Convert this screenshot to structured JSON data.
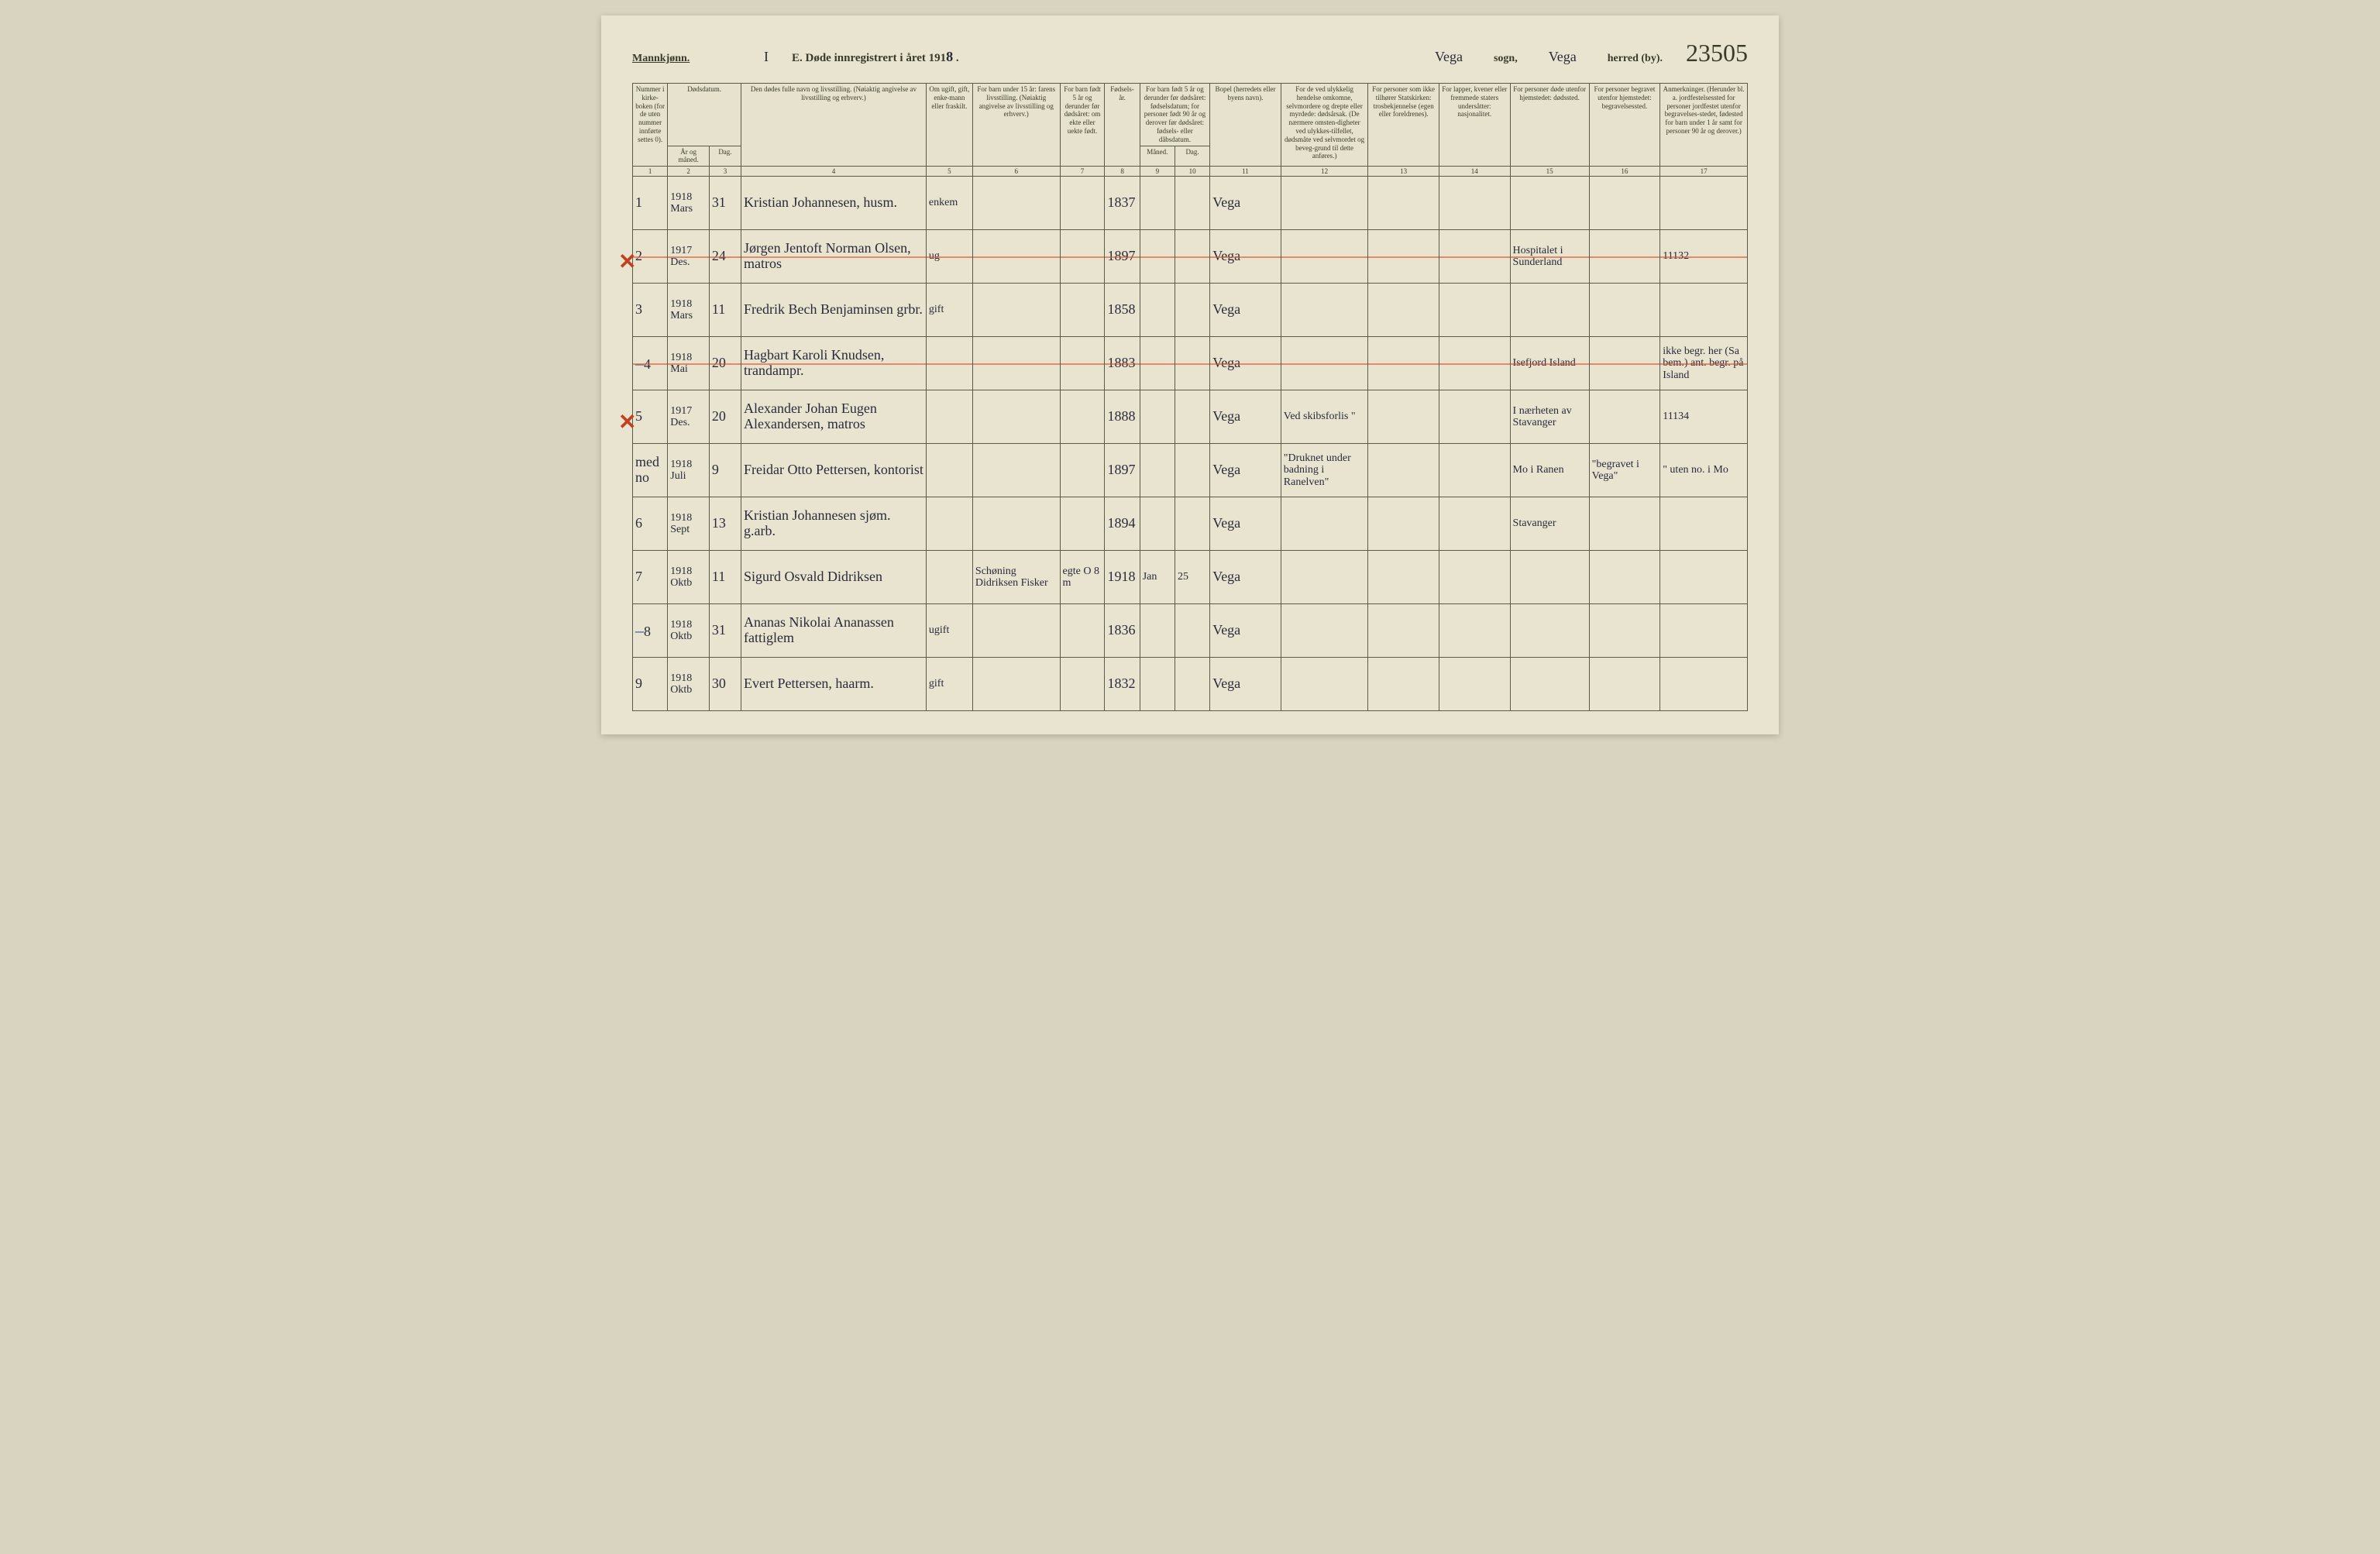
{
  "header": {
    "gender": "Mannkjønn.",
    "ref_mark": "I",
    "title_prefix": "E. Døde innregistrert i året 191",
    "year_suffix": "8",
    "sogn_value": "Vega",
    "sogn_label": "sogn,",
    "herred_value": "Vega",
    "herred_label": "herred (by).",
    "ref_number": "23505"
  },
  "columns": {
    "c1": "Nummer i kirke-boken (for de uten nummer innførte settes 0).",
    "c2_top": "Dødsdatum.",
    "c2": "År og måned.",
    "c3": "Dag.",
    "c4": "Den dødes fulle navn og livsstilling. (Nøiaktig angivelse av livsstilling og erhverv.)",
    "c5": "Om ugift, gift, enke-mann eller fraskilt.",
    "c6": "For barn under 15 år: farens livsstilling. (Nøiaktig angivelse av livsstilling og erhverv.)",
    "c7": "For barn født 5 år og derunder før dødsåret: om ekte eller uekte født.",
    "c8": "Fødsels-år.",
    "c9_10_top": "For barn født 5 år og derunder før dødsåret: fødselsdatum; for personer født 90 år og derover før dødsåret: fødsels- eller dåbsdatum.",
    "c9": "Måned.",
    "c10": "Dag.",
    "c11": "Bopel (herredets eller byens navn).",
    "c12": "For de ved ulykkelig hendelse omkomne, selvmordere og drepte eller myrdede: dødsårsak. (De nærmere omsten-digheter ved ulykkes-tilfellet, dødsmåte ved selvmordet og beveg-grund til dette anføres.)",
    "c13": "For personer som ikke tilhører Statskirken: trosbekjennelse (egen eller foreldrenes).",
    "c14": "For lapper, kvener eller fremmede staters undersåtter: nasjonalitet.",
    "c15": "For personer døde utenfor hjemstedet: dødssted.",
    "c16": "For personer begravet utenfor hjemstedet: begravelsessted.",
    "c17": "Anmerkninger. (Herunder bl. a. jordfestelsessted for personer jordfestet utenfor begravelses-stedet, fødested for barn under 1 år samt for personer 90 år og derover.)"
  },
  "colnums": [
    "1",
    "2",
    "3",
    "4",
    "5",
    "6",
    "7",
    "8",
    "9",
    "10",
    "11",
    "12",
    "13",
    "14",
    "15",
    "16",
    "17"
  ],
  "rows": [
    {
      "num": "1",
      "yr": "1918 Mars",
      "day": "31",
      "name": "Kristian Johannesen, husm.",
      "c5": "enkem",
      "c8": "1837",
      "c11": "Vega"
    },
    {
      "num": "2",
      "yr": "1917 Des.",
      "day": "24",
      "name": "Jørgen Jentoft Norman Olsen, matros",
      "c5": "ug",
      "c8": "1897",
      "c11": "Vega",
      "c15": "Hospitalet i Sunderland",
      "c17": "11132",
      "xmark": true,
      "redline": true
    },
    {
      "num": "3",
      "yr": "1918 Mars",
      "day": "11",
      "name": "Fredrik Bech Benjaminsen grbr.",
      "c5": "gift",
      "c8": "1858",
      "c11": "Vega"
    },
    {
      "num": "4",
      "yr": "1918 Mai",
      "day": "20",
      "name": "Hagbart Karoli Knudsen, trandampr.",
      "c8": "1883",
      "c11": "Vega",
      "c15": "Isefjord Island",
      "c17": "ikke begr. her (Sa bem.) ant. begr. på Island",
      "bluemark": true,
      "redline": true
    },
    {
      "num": "5",
      "yr": "1917 Des.",
      "day": "20",
      "name": "Alexander Johan Eugen Alexandersen, matros",
      "c8": "1888",
      "c11": "Vega",
      "c12": "Ved skibsforlis \"",
      "c15": "I nærheten av Stavanger",
      "c17": "11134",
      "xmark": true
    },
    {
      "num": "med no",
      "yr": "1918 Juli",
      "day": "9",
      "name": "Freidar Otto Pettersen, kontorist",
      "c8": "1897",
      "c11": "Vega",
      "c12": "\"Druknet under badning i Ranelven\"",
      "c15": "Mo i Ranen",
      "c16": "\"begravet i Vega\"",
      "c17": "\" uten no. i Mo"
    },
    {
      "num": "6",
      "yr": "1918 Sept",
      "day": "13",
      "name": "Kristian Johannesen sjøm. g.arb.",
      "c8": "1894",
      "c11": "Vega",
      "c15": "Stavanger"
    },
    {
      "num": "7",
      "yr": "1918 Oktb",
      "day": "11",
      "name": "Sigurd Osvald Didriksen",
      "c6": "Schøning Didriksen Fisker",
      "c7": "egte  O 8 m",
      "c8": "1918",
      "c9": "Jan",
      "c10": "25",
      "c11": "Vega"
    },
    {
      "num": "8",
      "yr": "1918 Oktb",
      "day": "31",
      "name": "Ananas Nikolai Ananassen  fattiglem",
      "c5": "ugift",
      "c8": "1836",
      "c11": "Vega",
      "bluemark": true
    },
    {
      "num": "9",
      "yr": "1918 Oktb",
      "day": "30",
      "name": "Evert Pettersen, haarm.",
      "c5": "gift",
      "c8": "1832",
      "c11": "Vega"
    }
  ]
}
